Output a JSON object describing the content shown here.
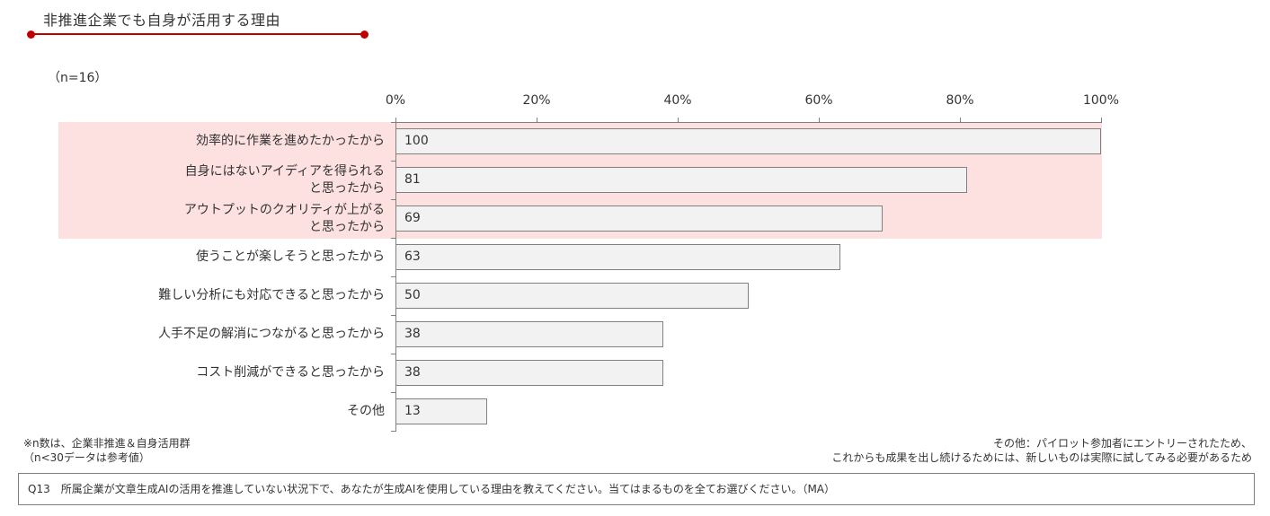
{
  "header": {
    "title": "非推進企業でも自身が活用する理由",
    "accent_color": "#c00000",
    "n_label": "（n=16）"
  },
  "chart_data": {
    "type": "bar",
    "orientation": "horizontal",
    "title": "非推進企業でも自身が活用する理由",
    "subtitle": "（n=16）",
    "xlabel": "",
    "ylabel": "",
    "xlim": [
      0,
      100
    ],
    "x_ticks": [
      "0%",
      "20%",
      "40%",
      "60%",
      "80%",
      "100%"
    ],
    "categories": [
      "効率的に作業を進めたかったから",
      "自身にはないアイディアを得られると思ったから",
      "アウトプットのクオリティが上がると思ったから",
      "使うことが楽しそうと思ったから",
      "難しい分析にも対応できると思ったから",
      "人手不足の解消につながると思ったから",
      "コスト削減ができると思ったから",
      "その他"
    ],
    "values": [
      100,
      81,
      69,
      63,
      50,
      38,
      38,
      13
    ],
    "highlighted_categories": [
      0,
      1,
      2
    ],
    "highlight_color": "#fde0e0",
    "bar_color": "#f2f2f2",
    "bar_border_color": "#808080",
    "grid": false,
    "legend": "none"
  },
  "axis": {
    "ticks": [
      "0%",
      "20%",
      "40%",
      "60%",
      "80%",
      "100%"
    ]
  },
  "bars": [
    {
      "label_lines": [
        "効率的に作業を進めたかったから"
      ],
      "value": "100"
    },
    {
      "label_lines": [
        "自身にはないアイディアを得られる",
        "と思ったから"
      ],
      "value": "81"
    },
    {
      "label_lines": [
        "アウトプットのクオリティが上がる",
        "と思ったから"
      ],
      "value": "69"
    },
    {
      "label_lines": [
        "使うことが楽しそうと思ったから"
      ],
      "value": "63"
    },
    {
      "label_lines": [
        "難しい分析にも対応できると思ったから"
      ],
      "value": "50"
    },
    {
      "label_lines": [
        "人手不足の解消につながると思ったから"
      ],
      "value": "38"
    },
    {
      "label_lines": [
        "コスト削減ができると思ったから"
      ],
      "value": "38"
    },
    {
      "label_lines": [
        "その他"
      ],
      "value": "13"
    }
  ],
  "notes": {
    "left_line1": "※n数は、企業非推進＆自身活用群",
    "left_line2": "（n<30データは参考値）",
    "right_line1": "その他：パイロット参加者にエントリーされたため、",
    "right_line2": "これからも成果を出し続けるためには、新しいものは実際に試してみる必要があるため"
  },
  "question": {
    "text": "Q13　所属企業が文章生成AIの活用を推進していない状況下で、あなたが生成AIを使用している理由を教えてください。当てはまるものを全てお選びください。（MA）"
  }
}
